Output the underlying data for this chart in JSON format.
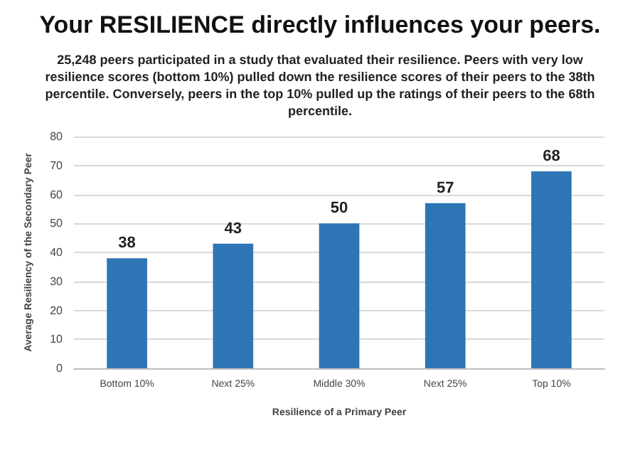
{
  "chart_data": {
    "type": "bar",
    "title": "Your RESILIENCE directly influences your peers.",
    "subtitle": "25,248 peers participated in a study that evaluated their resilience. Peers with very low resilience scores (bottom 10%) pulled down the resilience scores of their peers to the 38th percentile. Conversely, peers in the top 10% pulled up the ratings of their peers to the 68th percentile.",
    "categories": [
      "Bottom 10%",
      "Next 25%",
      "Middle 30%",
      "Next 25%",
      "Top 10%"
    ],
    "values": [
      38,
      43,
      50,
      57,
      68
    ],
    "color": "#2e75b6",
    "xlabel": "Resilience of a Primary Peer",
    "ylabel": "Average Resiliency of the Secondary Peer",
    "ylim": [
      0,
      80
    ],
    "yticks": [
      0,
      10,
      20,
      30,
      40,
      50,
      60,
      70,
      80
    ],
    "grid": "y",
    "data_labels": true
  }
}
